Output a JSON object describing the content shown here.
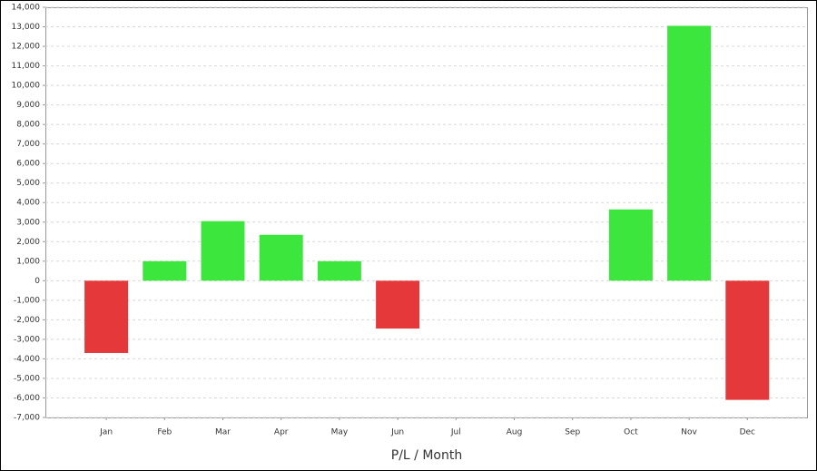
{
  "chart_data": {
    "type": "bar",
    "x_label": "P/L / Month",
    "categories": [
      "Jan",
      "Feb",
      "Mar",
      "Apr",
      "May",
      "Jun",
      "Jul",
      "Aug",
      "Sep",
      "Oct",
      "Nov",
      "Dec"
    ],
    "values": [
      -3700,
      1000,
      3050,
      2350,
      1000,
      -2450,
      0,
      0,
      0,
      3650,
      13050,
      -6100
    ],
    "positive_color": "#3de63d",
    "negative_color": "#e5383b",
    "ylim": [
      -7000,
      14000
    ],
    "yticks": [
      {
        "value": -7000,
        "label": "-7,000"
      },
      {
        "value": -6000,
        "label": "-6,000"
      },
      {
        "value": -5000,
        "label": "-5,000"
      },
      {
        "value": -4000,
        "label": "-4,000"
      },
      {
        "value": -3000,
        "label": "-3,000"
      },
      {
        "value": -2000,
        "label": "-2,000"
      },
      {
        "value": -1000,
        "label": "-1,000"
      },
      0,
      {
        "value": 1000,
        "label": "1,000"
      },
      {
        "value": 2000,
        "label": "2,000"
      },
      {
        "value": 3000,
        "label": "3,000"
      },
      {
        "value": 4000,
        "label": "4,000"
      },
      {
        "value": 5000,
        "label": "5,000"
      },
      {
        "value": 6000,
        "label": "6,000"
      },
      {
        "value": 7000,
        "label": "7,000"
      },
      {
        "value": 8000,
        "label": "8,000"
      },
      {
        "value": 9000,
        "label": "9,000"
      },
      {
        "value": 10000,
        "label": "10,000"
      },
      {
        "value": 11000,
        "label": "11,000"
      },
      {
        "value": 12000,
        "label": "12,000"
      },
      {
        "value": 13000,
        "label": "13,000"
      },
      {
        "value": 14000,
        "label": "14,000"
      }
    ],
    "grid": true
  }
}
